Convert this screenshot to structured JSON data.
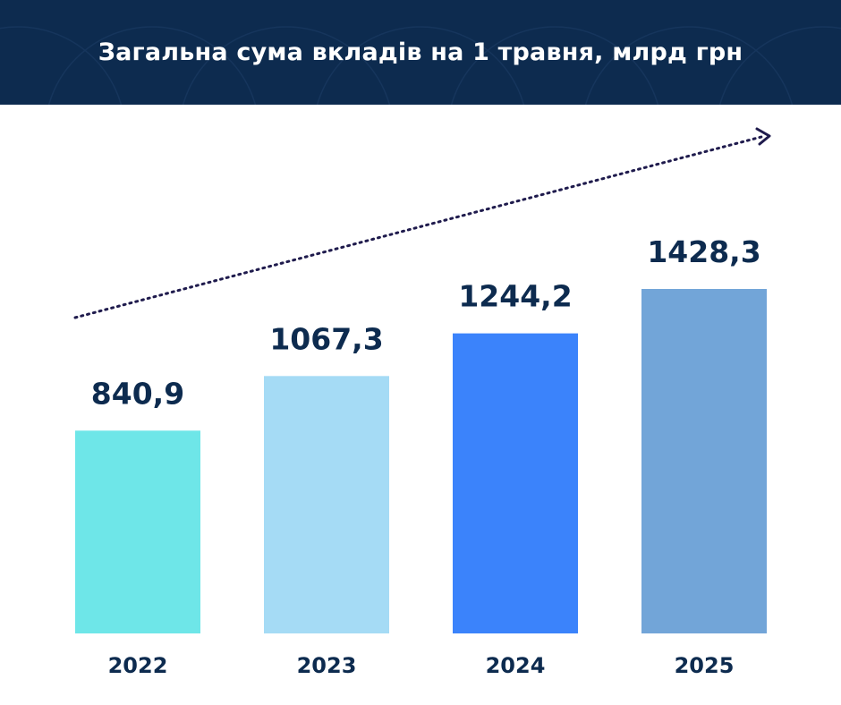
{
  "header": {
    "title": "Загальна сума вкладів на 1 травня, млрд грн"
  },
  "chart_data": {
    "type": "bar",
    "title": "Загальна сума вкладів на 1 травня, млрд грн",
    "categories": [
      "2022",
      "2023",
      "2024",
      "2025"
    ],
    "values": [
      840.9,
      1067.3,
      1244.2,
      1428.3
    ],
    "value_labels": [
      "840,9",
      "1067,3",
      "1244,2",
      "1428,3"
    ],
    "colors": [
      "#6ee6e8",
      "#a5dbf5",
      "#3b83fb",
      "#72a5d8"
    ],
    "label_color": "#0d2b4f",
    "trend_arrow": true,
    "grid": false,
    "ylim": [
      0,
      1428.3
    ]
  }
}
